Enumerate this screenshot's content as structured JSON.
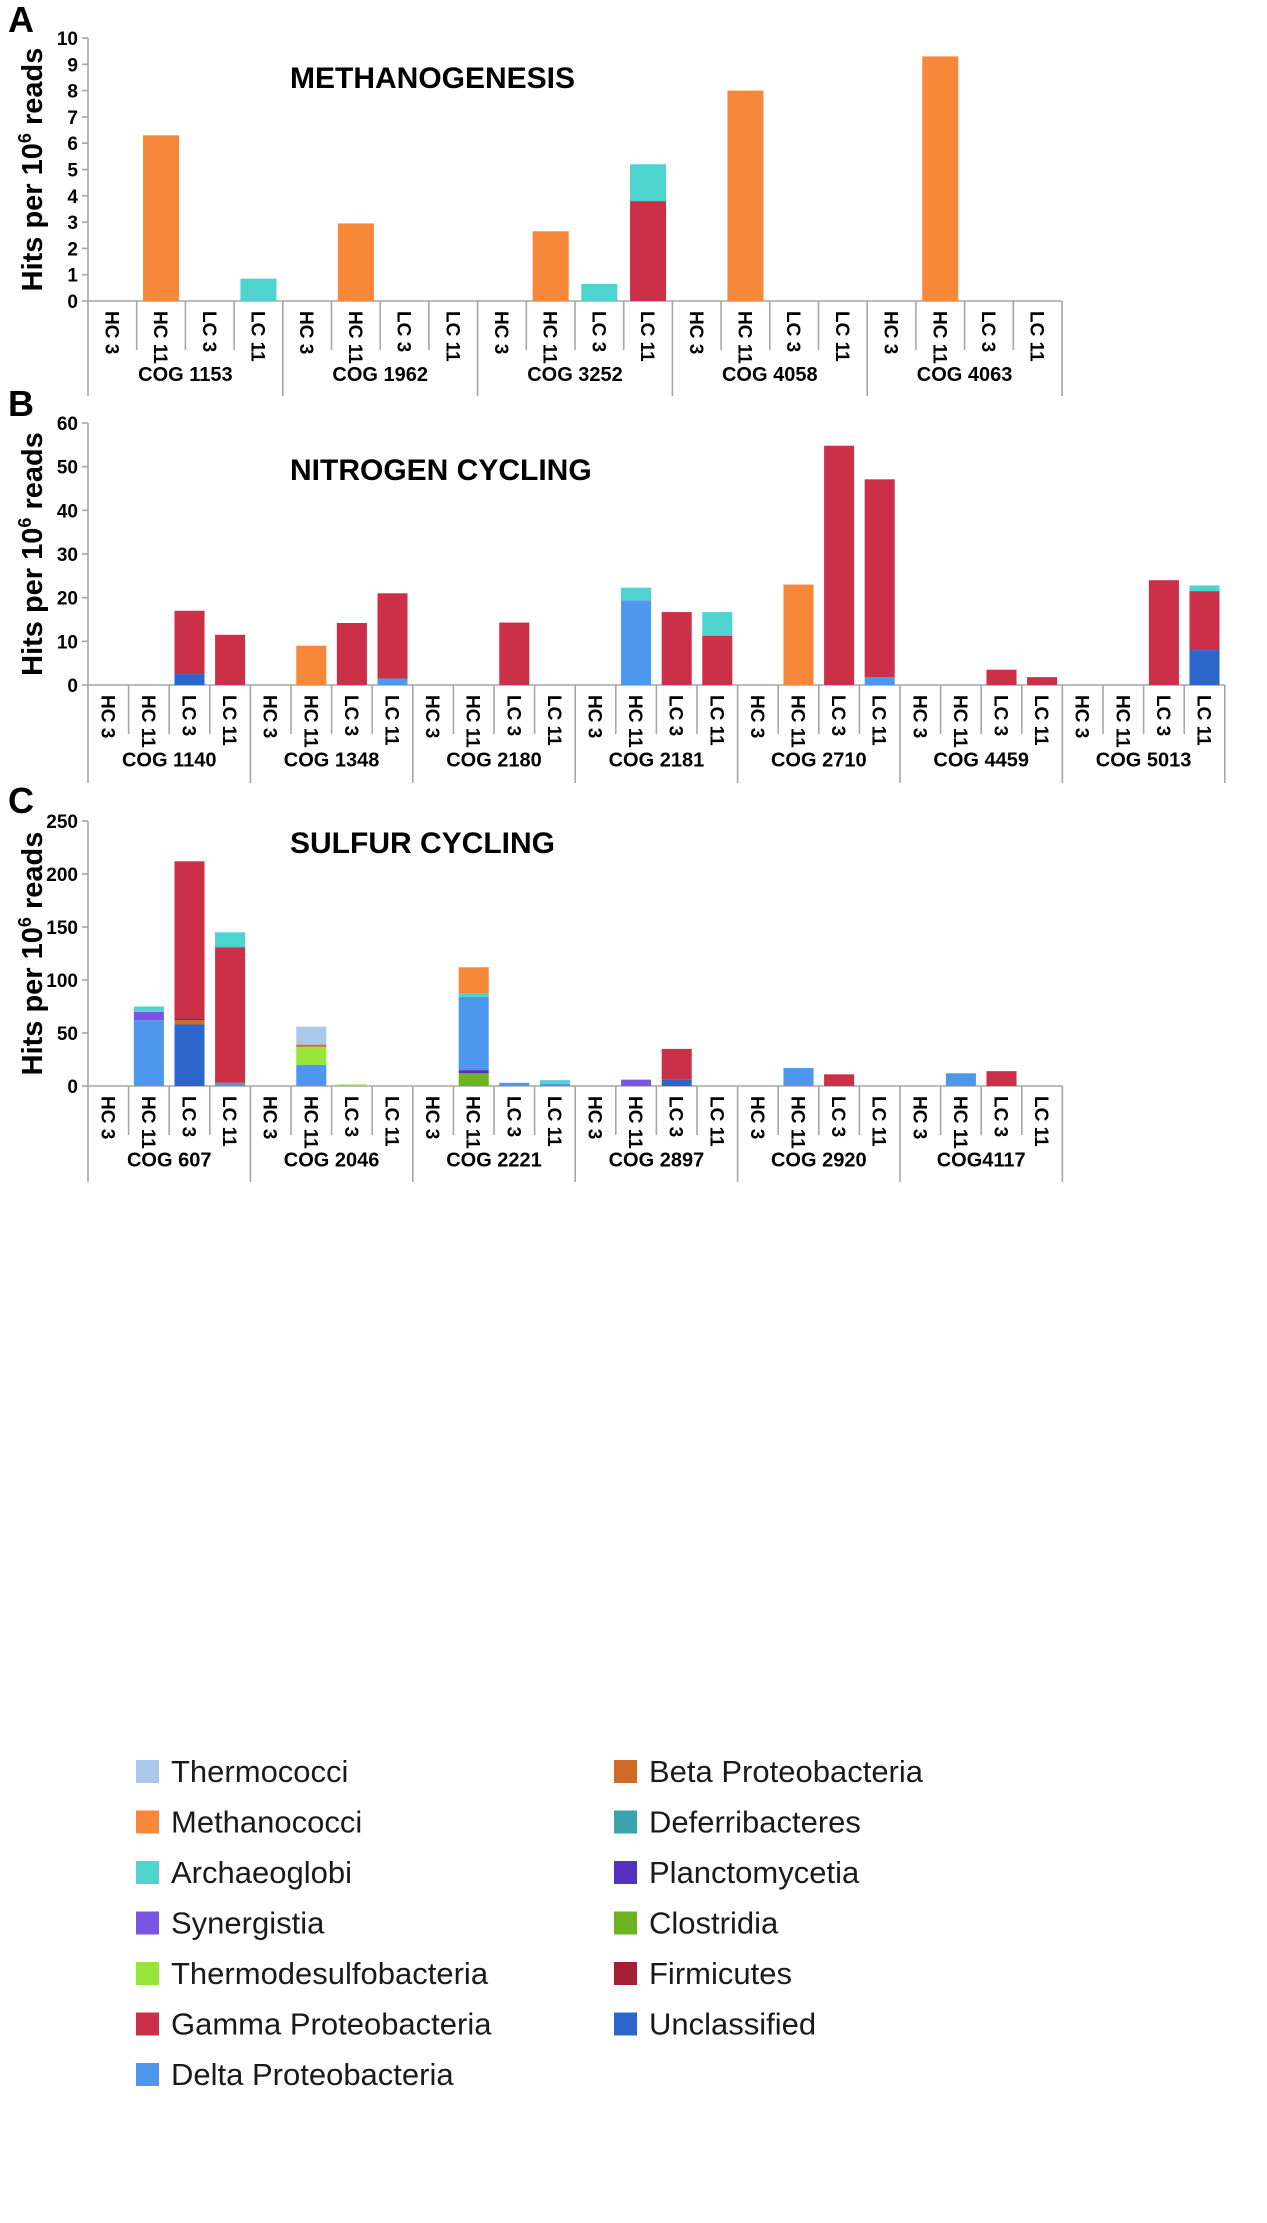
{
  "colors": {
    "Thermococci": "#a9c8ec",
    "Methanococci": "#f7883a",
    "Archaeoglobi": "#4fd3cf",
    "Synergistia": "#7a55e3",
    "Thermodesulfobacteria": "#97e43a",
    "Gamma Proteobacteria": "#cc3048",
    "Delta Proteobacteria": "#4d97ee",
    "Beta Proteobacteria": "#cd6b27",
    "Deferribacteres": "#3aa3ad",
    "Planctomycetia": "#5431bf",
    "Clostridia": "#6cb31f",
    "Firmicutes": "#a41f35",
    "Unclassified": "#2d66cb"
  },
  "chart_data": [
    {
      "panel": "A",
      "type": "bar",
      "stacked": true,
      "title": "METHANOGENESIS",
      "ylabel_prefix": "Hits per 10",
      "ylabel_sup": "6",
      "ylabel_suffix": " reads",
      "ylim": [
        0,
        10
      ],
      "yticks": [
        0,
        1,
        2,
        3,
        4,
        5,
        6,
        7,
        8,
        9,
        10
      ],
      "samples": [
        "HC 3",
        "HC 11",
        "LC 3",
        "LC 11"
      ],
      "groups": [
        {
          "name": "COG 1153",
          "bars": [
            [],
            [
              {
                "taxon": "Methanococci",
                "value": 6.3
              }
            ],
            [],
            [
              {
                "taxon": "Archaeoglobi",
                "value": 0.85
              }
            ]
          ]
        },
        {
          "name": "COG 1962",
          "bars": [
            [],
            [
              {
                "taxon": "Methanococci",
                "value": 2.95
              }
            ],
            [],
            []
          ]
        },
        {
          "name": "COG 3252",
          "bars": [
            [],
            [
              {
                "taxon": "Methanococci",
                "value": 2.65
              }
            ],
            [
              {
                "taxon": "Archaeoglobi",
                "value": 0.65
              }
            ],
            [
              {
                "taxon": "Gamma Proteobacteria",
                "value": 3.8
              },
              {
                "taxon": "Archaeoglobi",
                "value": 1.4
              }
            ]
          ]
        },
        {
          "name": "COG 4058",
          "bars": [
            [],
            [
              {
                "taxon": "Methanococci",
                "value": 8.0
              }
            ],
            [],
            []
          ]
        },
        {
          "name": "COG 4063",
          "bars": [
            [],
            [
              {
                "taxon": "Methanococci",
                "value": 9.3
              }
            ],
            [],
            []
          ]
        }
      ]
    },
    {
      "panel": "B",
      "type": "bar",
      "stacked": true,
      "title": "NITROGEN CYCLING",
      "ylabel_prefix": "Hits per 10",
      "ylabel_sup": "6",
      "ylabel_suffix": " reads",
      "ylim": [
        0,
        60
      ],
      "yticks": [
        0,
        10,
        20,
        30,
        40,
        50,
        60
      ],
      "samples": [
        "HC 3",
        "HC 11",
        "LC 3",
        "LC 11"
      ],
      "groups": [
        {
          "name": "COG 1140",
          "bars": [
            [],
            [],
            [
              {
                "taxon": "Unclassified",
                "value": 2.5
              },
              {
                "taxon": "Gamma Proteobacteria",
                "value": 14.5
              }
            ],
            [
              {
                "taxon": "Gamma Proteobacteria",
                "value": 11.5
              }
            ]
          ]
        },
        {
          "name": "COG 1348",
          "bars": [
            [],
            [
              {
                "taxon": "Methanococci",
                "value": 9.0
              }
            ],
            [
              {
                "taxon": "Gamma Proteobacteria",
                "value": 14.2
              }
            ],
            [
              {
                "taxon": "Delta Proteobacteria",
                "value": 1.5
              },
              {
                "taxon": "Gamma Proteobacteria",
                "value": 19.5
              }
            ]
          ]
        },
        {
          "name": "COG 2180",
          "bars": [
            [],
            [],
            [
              {
                "taxon": "Gamma Proteobacteria",
                "value": 14.3
              }
            ],
            []
          ]
        },
        {
          "name": "COG 2181",
          "bars": [
            [],
            [
              {
                "taxon": "Delta Proteobacteria",
                "value": 19.4
              },
              {
                "taxon": "Archaeoglobi",
                "value": 2.9
              }
            ],
            [
              {
                "taxon": "Gamma Proteobacteria",
                "value": 16.7
              }
            ],
            [
              {
                "taxon": "Gamma Proteobacteria",
                "value": 11.3
              },
              {
                "taxon": "Archaeoglobi",
                "value": 5.4
              }
            ]
          ]
        },
        {
          "name": "COG 2710",
          "bars": [
            [],
            [
              {
                "taxon": "Methanococci",
                "value": 23.0
              }
            ],
            [
              {
                "taxon": "Gamma Proteobacteria",
                "value": 54.8
              }
            ],
            [
              {
                "taxon": "Delta Proteobacteria",
                "value": 1.8
              },
              {
                "taxon": "Gamma Proteobacteria",
                "value": 45.3
              }
            ]
          ]
        },
        {
          "name": "COG 4459",
          "bars": [
            [],
            [],
            [
              {
                "taxon": "Gamma Proteobacteria",
                "value": 3.5
              }
            ],
            [
              {
                "taxon": "Gamma Proteobacteria",
                "value": 1.8
              }
            ]
          ]
        },
        {
          "name": "COG 5013",
          "bars": [
            [],
            [],
            [
              {
                "taxon": "Gamma Proteobacteria",
                "value": 24.0
              }
            ],
            [
              {
                "taxon": "Unclassified",
                "value": 8.0
              },
              {
                "taxon": "Gamma Proteobacteria",
                "value": 13.5
              },
              {
                "taxon": "Archaeoglobi",
                "value": 1.3
              }
            ]
          ]
        }
      ]
    },
    {
      "panel": "C",
      "type": "bar",
      "stacked": true,
      "title": "SULFUR CYCLING",
      "ylabel_prefix": "Hits per 10",
      "ylabel_sup": "6",
      "ylabel_suffix": " reads",
      "ylim": [
        0,
        250
      ],
      "yticks": [
        0,
        50,
        100,
        150,
        200,
        250
      ],
      "samples": [
        "HC 3",
        "HC 11",
        "LC 3",
        "LC 11"
      ],
      "groups": [
        {
          "name": "COG 607",
          "bars": [
            [],
            [
              {
                "taxon": "Delta Proteobacteria",
                "value": 62
              },
              {
                "taxon": "Synergistia",
                "value": 8
              },
              {
                "taxon": "Archaeoglobi",
                "value": 5
              }
            ],
            [
              {
                "taxon": "Unclassified",
                "value": 58
              },
              {
                "taxon": "Beta Proteobacteria",
                "value": 4
              },
              {
                "taxon": "Firmicutes",
                "value": 2
              },
              {
                "taxon": "Gamma Proteobacteria",
                "value": 148
              }
            ],
            [
              {
                "taxon": "Delta Proteobacteria",
                "value": 3
              },
              {
                "taxon": "Gamma Proteobacteria",
                "value": 128
              },
              {
                "taxon": "Archaeoglobi",
                "value": 14
              }
            ]
          ]
        },
        {
          "name": "COG 2046",
          "bars": [
            [],
            [
              {
                "taxon": "Delta Proteobacteria",
                "value": 20
              },
              {
                "taxon": "Thermodesulfobacteria",
                "value": 17
              },
              {
                "taxon": "Beta Proteobacteria",
                "value": 2
              },
              {
                "taxon": "Thermococci",
                "value": 17
              }
            ],
            [
              {
                "taxon": "Thermodesulfobacteria",
                "value": 1.5
              }
            ],
            []
          ]
        },
        {
          "name": "COG 2221",
          "bars": [
            [],
            [
              {
                "taxon": "Clostridia",
                "value": 12
              },
              {
                "taxon": "Planctomycetia",
                "value": 3
              },
              {
                "taxon": "Delta Proteobacteria",
                "value": 69
              },
              {
                "taxon": "Archaeoglobi",
                "value": 3
              },
              {
                "taxon": "Methanococci",
                "value": 25
              }
            ],
            [
              {
                "taxon": "Delta Proteobacteria",
                "value": 3
              }
            ],
            [
              {
                "taxon": "Delta Proteobacteria",
                "value": 2
              },
              {
                "taxon": "Archaeoglobi",
                "value": 3.5
              }
            ]
          ]
        },
        {
          "name": "COG 2897",
          "bars": [
            [],
            [
              {
                "taxon": "Synergistia",
                "value": 6
              }
            ],
            [
              {
                "taxon": "Unclassified",
                "value": 6
              },
              {
                "taxon": "Gamma Proteobacteria",
                "value": 29
              }
            ],
            []
          ]
        },
        {
          "name": "COG 2920",
          "bars": [
            [],
            [
              {
                "taxon": "Delta Proteobacteria",
                "value": 17
              }
            ],
            [
              {
                "taxon": "Gamma Proteobacteria",
                "value": 11
              }
            ],
            []
          ]
        },
        {
          "name": "COG4117",
          "bars": [
            [],
            [
              {
                "taxon": "Delta Proteobacteria",
                "value": 12
              }
            ],
            [
              {
                "taxon": "Gamma Proteobacteria",
                "value": 14
              }
            ],
            []
          ]
        }
      ]
    }
  ],
  "legend": {
    "left": [
      "Thermococci",
      "Methanococci",
      "Archaeoglobi",
      "Synergistia",
      "Thermodesulfobacteria",
      "Gamma Proteobacteria",
      "Delta Proteobacteria"
    ],
    "right": [
      "Beta Proteobacteria",
      "Deferribacteres",
      "Planctomycetia",
      "Clostridia",
      "Firmicutes",
      "Unclassified"
    ]
  }
}
